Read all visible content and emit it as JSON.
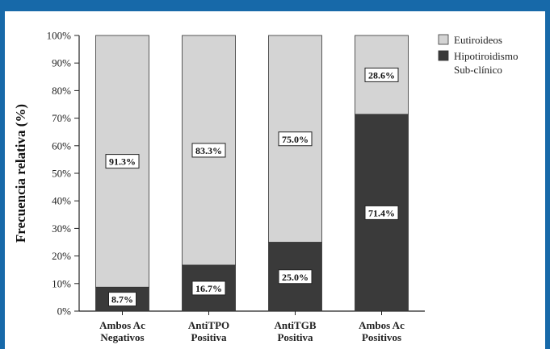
{
  "chart_data": {
    "type": "bar",
    "stacked": true,
    "categories": [
      [
        "Ambos Ac",
        "Negativos"
      ],
      [
        "AntiTPO",
        "Positiva"
      ],
      [
        "AntiTGB",
        "Positiva"
      ],
      [
        "Ambos Ac",
        "Positivos"
      ]
    ],
    "series": [
      {
        "name": "Hipotiroidismo Sub-clínico",
        "values": [
          8.7,
          16.7,
          25.0,
          71.4
        ],
        "labels": [
          "8.7%",
          "16.7%",
          "25.0%",
          "71.4%"
        ],
        "color": "#3a3a3a"
      },
      {
        "name": "Eutiroideos",
        "values": [
          91.3,
          83.3,
          75.0,
          28.6
        ],
        "labels": [
          "91.3%",
          "83.3%",
          "75.0%",
          "28.6%"
        ],
        "color": "#d4d4d4"
      }
    ],
    "ylabel": "Frecuencia relativa (%)",
    "ylim": [
      0,
      100
    ],
    "yticks": [
      "0%",
      "10%",
      "20%",
      "30%",
      "40%",
      "50%",
      "60%",
      "70%",
      "80%",
      "90%",
      "100%"
    ],
    "legend_position": "top-right",
    "legend": [
      {
        "lines": [
          "Eutiroideos"
        ],
        "color": "#d4d4d4"
      },
      {
        "lines": [
          "Hipotiroidismo",
          "Sub-clínico"
        ],
        "color": "#3a3a3a"
      }
    ],
    "grid": false
  }
}
